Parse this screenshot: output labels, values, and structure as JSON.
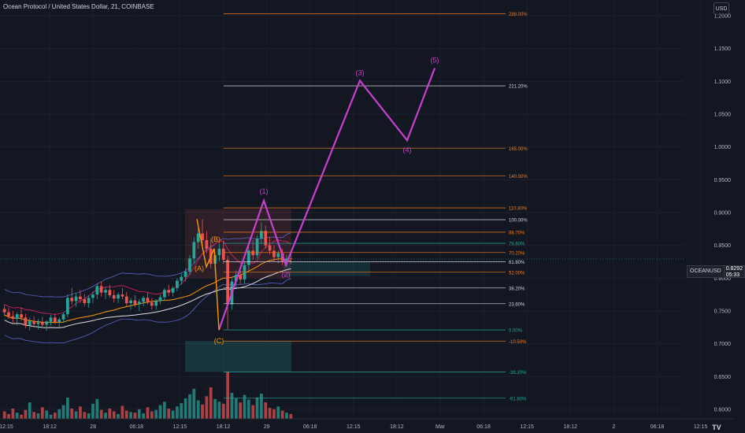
{
  "header": {
    "title": "Ocean Protocol / United States Dollar, 21, COINBASE",
    "currency_button": "USD"
  },
  "price_badge": {
    "symbol": "OCEANUSD",
    "price": "0.8292",
    "countdown": "05:33"
  },
  "colors": {
    "background": "#131722",
    "up": "#26a69a",
    "down": "#ef5350",
    "wave": "#c93fd0",
    "fib_orange": "#f57c1f",
    "fib_white": "#d1d4dc",
    "fib_teal": "#26a69a",
    "abc_orange": "#ff9800"
  },
  "chart_data": {
    "type": "candlestick",
    "y_axis_ticks": [
      "1.2000",
      "1.1500",
      "1.1000",
      "1.0500",
      "1.0000",
      "0.9500",
      "0.9000",
      "0.8500",
      "0.8000",
      "0.7500",
      "0.7000",
      "0.6500",
      "0.6000"
    ],
    "y_axis_tick_values": [
      1.2,
      1.15,
      1.1,
      1.05,
      1.0,
      0.95,
      0.9,
      0.85,
      0.8,
      0.75,
      0.7,
      0.65,
      0.6
    ],
    "ylim": [
      0.595,
      1.225
    ],
    "x_axis_ticks": [
      "12:15",
      "18:12",
      "28",
      "06:18",
      "12:15",
      "18:12",
      "29",
      "06:18",
      "12:15",
      "18:12",
      "Mar",
      "06:18",
      "12:15",
      "18:12",
      "2",
      "06:18",
      "12:15"
    ],
    "last_price": 0.8292,
    "fib_levels": [
      {
        "label": "289.00%",
        "price": 1.2031,
        "color": "fib_orange"
      },
      {
        "label": "221.20%",
        "price": 1.0931,
        "color": "fib_white"
      },
      {
        "label": "165.00%",
        "price": 0.9981,
        "color": "fib_orange"
      },
      {
        "label": "140.00%",
        "price": 0.9561,
        "color": "fib_orange"
      },
      {
        "label": "110.80%",
        "price": 0.9071,
        "color": "fib_orange"
      },
      {
        "label": "100.00%",
        "price": 0.8891,
        "color": "fib_white"
      },
      {
        "label": "88.70%",
        "price": 0.8701,
        "color": "fib_orange"
      },
      {
        "label": "78.60%",
        "price": 0.8531,
        "color": "fib_teal"
      },
      {
        "label": "70.20%",
        "price": 0.8391,
        "color": "fib_orange"
      },
      {
        "label": "61.80%",
        "price": 0.8251,
        "color": "fib_white"
      },
      {
        "label": "52.00%",
        "price": 0.8091,
        "color": "fib_orange"
      },
      {
        "label": "38.20%",
        "price": 0.7851,
        "color": "fib_white"
      },
      {
        "label": "23.60%",
        "price": 0.7611,
        "color": "fib_white"
      },
      {
        "label": "0.00%",
        "price": 0.7211,
        "color": "fib_teal"
      },
      {
        "label": "-10.50%",
        "price": 0.7041,
        "color": "fib_orange"
      },
      {
        "label": "-38.20%",
        "price": 0.6571,
        "color": "fib_teal"
      },
      {
        "label": "-61.80%",
        "price": 0.6171,
        "color": "fib_teal"
      }
    ],
    "elliott_wave_labels": [
      "(1)",
      "(2)",
      "(3)",
      "(4)",
      "(5)"
    ],
    "corrective_wave_labels": [
      "(A)",
      "(B)",
      "(C)"
    ],
    "elliott_wave_path": [
      {
        "t": 278,
        "price": 0.7211
      },
      {
        "t": 335,
        "price": 0.9181
      },
      {
        "t": 363,
        "price": 0.8201
      },
      {
        "t": 457,
        "price": 1.1011
      },
      {
        "t": 517,
        "price": 1.0101
      },
      {
        "t": 552,
        "price": 1.1201
      }
    ],
    "corrective_wave_path": [
      {
        "t": 250,
        "price": 0.8901
      },
      {
        "t": 262,
        "price": 0.8171
      },
      {
        "t": 272,
        "price": 0.8451
      },
      {
        "t": 278,
        "price": 0.7211
      }
    ],
    "candles": [
      {
        "o": 0.753,
        "h": 0.76,
        "l": 0.742,
        "c": 0.748
      },
      {
        "o": 0.748,
        "h": 0.755,
        "l": 0.738,
        "c": 0.742
      },
      {
        "o": 0.742,
        "h": 0.75,
        "l": 0.732,
        "c": 0.738
      },
      {
        "o": 0.738,
        "h": 0.748,
        "l": 0.728,
        "c": 0.745
      },
      {
        "o": 0.745,
        "h": 0.755,
        "l": 0.735,
        "c": 0.74
      },
      {
        "o": 0.74,
        "h": 0.746,
        "l": 0.724,
        "c": 0.728
      },
      {
        "o": 0.728,
        "h": 0.74,
        "l": 0.72,
        "c": 0.735
      },
      {
        "o": 0.735,
        "h": 0.742,
        "l": 0.725,
        "c": 0.73
      },
      {
        "o": 0.73,
        "h": 0.738,
        "l": 0.722,
        "c": 0.733
      },
      {
        "o": 0.733,
        "h": 0.741,
        "l": 0.726,
        "c": 0.729
      },
      {
        "o": 0.729,
        "h": 0.736,
        "l": 0.72,
        "c": 0.734
      },
      {
        "o": 0.734,
        "h": 0.744,
        "l": 0.728,
        "c": 0.74
      },
      {
        "o": 0.74,
        "h": 0.746,
        "l": 0.73,
        "c": 0.733
      },
      {
        "o": 0.733,
        "h": 0.74,
        "l": 0.725,
        "c": 0.737
      },
      {
        "o": 0.737,
        "h": 0.748,
        "l": 0.732,
        "c": 0.745
      },
      {
        "o": 0.745,
        "h": 0.775,
        "l": 0.74,
        "c": 0.77
      },
      {
        "o": 0.77,
        "h": 0.785,
        "l": 0.76,
        "c": 0.765
      },
      {
        "o": 0.765,
        "h": 0.778,
        "l": 0.756,
        "c": 0.772
      },
      {
        "o": 0.772,
        "h": 0.782,
        "l": 0.762,
        "c": 0.768
      },
      {
        "o": 0.768,
        "h": 0.776,
        "l": 0.758,
        "c": 0.762
      },
      {
        "o": 0.762,
        "h": 0.774,
        "l": 0.755,
        "c": 0.77
      },
      {
        "o": 0.77,
        "h": 0.78,
        "l": 0.762,
        "c": 0.775
      },
      {
        "o": 0.775,
        "h": 0.792,
        "l": 0.768,
        "c": 0.788
      },
      {
        "o": 0.788,
        "h": 0.795,
        "l": 0.772,
        "c": 0.778
      },
      {
        "o": 0.778,
        "h": 0.786,
        "l": 0.768,
        "c": 0.782
      },
      {
        "o": 0.782,
        "h": 0.79,
        "l": 0.77,
        "c": 0.774
      },
      {
        "o": 0.774,
        "h": 0.782,
        "l": 0.763,
        "c": 0.769
      },
      {
        "o": 0.769,
        "h": 0.778,
        "l": 0.762,
        "c": 0.775
      },
      {
        "o": 0.775,
        "h": 0.785,
        "l": 0.768,
        "c": 0.772
      },
      {
        "o": 0.772,
        "h": 0.779,
        "l": 0.758,
        "c": 0.762
      },
      {
        "o": 0.762,
        "h": 0.77,
        "l": 0.752,
        "c": 0.766
      },
      {
        "o": 0.766,
        "h": 0.774,
        "l": 0.756,
        "c": 0.76
      },
      {
        "o": 0.76,
        "h": 0.768,
        "l": 0.75,
        "c": 0.764
      },
      {
        "o": 0.764,
        "h": 0.773,
        "l": 0.757,
        "c": 0.77
      },
      {
        "o": 0.77,
        "h": 0.778,
        "l": 0.76,
        "c": 0.763
      },
      {
        "o": 0.763,
        "h": 0.77,
        "l": 0.752,
        "c": 0.758
      },
      {
        "o": 0.758,
        "h": 0.768,
        "l": 0.752,
        "c": 0.765
      },
      {
        "o": 0.765,
        "h": 0.775,
        "l": 0.76,
        "c": 0.771
      },
      {
        "o": 0.771,
        "h": 0.785,
        "l": 0.766,
        "c": 0.782
      },
      {
        "o": 0.782,
        "h": 0.79,
        "l": 0.773,
        "c": 0.778
      },
      {
        "o": 0.778,
        "h": 0.788,
        "l": 0.772,
        "c": 0.785
      },
      {
        "o": 0.785,
        "h": 0.8,
        "l": 0.78,
        "c": 0.796
      },
      {
        "o": 0.796,
        "h": 0.808,
        "l": 0.79,
        "c": 0.802
      },
      {
        "o": 0.802,
        "h": 0.815,
        "l": 0.795,
        "c": 0.81
      },
      {
        "o": 0.81,
        "h": 0.835,
        "l": 0.805,
        "c": 0.83
      },
      {
        "o": 0.83,
        "h": 0.862,
        "l": 0.822,
        "c": 0.855
      },
      {
        "o": 0.855,
        "h": 0.875,
        "l": 0.845,
        "c": 0.868
      },
      {
        "o": 0.868,
        "h": 0.89,
        "l": 0.85,
        "c": 0.858
      },
      {
        "o": 0.858,
        "h": 0.872,
        "l": 0.838,
        "c": 0.845
      },
      {
        "o": 0.845,
        "h": 0.86,
        "l": 0.815,
        "c": 0.822
      },
      {
        "o": 0.822,
        "h": 0.84,
        "l": 0.81,
        "c": 0.835
      },
      {
        "o": 0.835,
        "h": 0.852,
        "l": 0.826,
        "c": 0.845
      },
      {
        "o": 0.845,
        "h": 0.856,
        "l": 0.822,
        "c": 0.828
      },
      {
        "o": 0.828,
        "h": 0.834,
        "l": 0.722,
        "c": 0.76
      },
      {
        "o": 0.76,
        "h": 0.8,
        "l": 0.752,
        "c": 0.795
      },
      {
        "o": 0.795,
        "h": 0.812,
        "l": 0.785,
        "c": 0.805
      },
      {
        "o": 0.805,
        "h": 0.818,
        "l": 0.79,
        "c": 0.798
      },
      {
        "o": 0.798,
        "h": 0.825,
        "l": 0.792,
        "c": 0.82
      },
      {
        "o": 0.82,
        "h": 0.848,
        "l": 0.812,
        "c": 0.842
      },
      {
        "o": 0.842,
        "h": 0.858,
        "l": 0.828,
        "c": 0.835
      },
      {
        "o": 0.835,
        "h": 0.865,
        "l": 0.83,
        "c": 0.86
      },
      {
        "o": 0.86,
        "h": 0.885,
        "l": 0.852,
        "c": 0.872
      },
      {
        "o": 0.872,
        "h": 0.88,
        "l": 0.845,
        "c": 0.85
      },
      {
        "o": 0.85,
        "h": 0.862,
        "l": 0.836,
        "c": 0.842
      },
      {
        "o": 0.842,
        "h": 0.85,
        "l": 0.826,
        "c": 0.832
      },
      {
        "o": 0.832,
        "h": 0.842,
        "l": 0.822,
        "c": 0.838
      },
      {
        "o": 0.838,
        "h": 0.845,
        "l": 0.82,
        "c": 0.826
      },
      {
        "o": 0.826,
        "h": 0.836,
        "l": 0.818,
        "c": 0.83
      },
      {
        "o": 0.83,
        "h": 0.838,
        "l": 0.822,
        "c": 0.829
      }
    ],
    "volumes": [
      22,
      14,
      30,
      18,
      12,
      26,
      48,
      20,
      16,
      34,
      24,
      12,
      18,
      28,
      40,
      62,
      30,
      22,
      36,
      20,
      16,
      44,
      58,
      26,
      18,
      30,
      22,
      14,
      38,
      24,
      20,
      18,
      28,
      16,
      34,
      22,
      26,
      40,
      50,
      30,
      24,
      36,
      46,
      60,
      72,
      88,
      54,
      42,
      66,
      92,
      58,
      50,
      44,
      138,
      76,
      60,
      48,
      70,
      56,
      40,
      62,
      74,
      48,
      32,
      28,
      36,
      24,
      18,
      14
    ]
  }
}
